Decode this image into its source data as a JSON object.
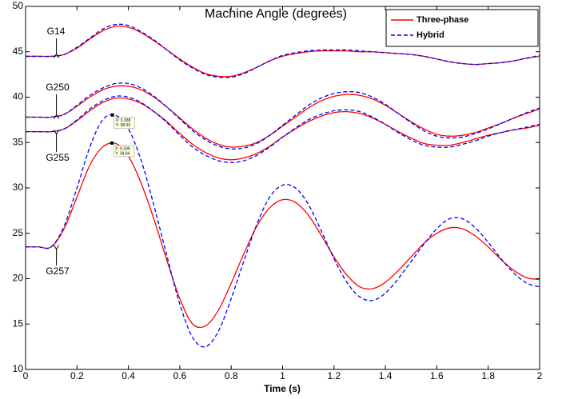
{
  "chart_data": {
    "type": "line",
    "title": "Machine Angle (degrees)",
    "x_label": "Time (s)",
    "x": [
      0,
      0.05,
      0.1,
      0.15,
      0.2,
      0.25,
      0.3,
      0.35,
      0.4,
      0.45,
      0.5,
      0.55,
      0.6,
      0.65,
      0.7,
      0.75,
      0.8,
      0.85,
      0.9,
      0.95,
      1,
      1.05,
      1.1,
      1.15,
      1.2,
      1.25,
      1.3,
      1.35,
      1.4,
      1.45,
      1.5,
      1.55,
      1.6,
      1.65,
      1.7,
      1.75,
      1.8,
      1.85,
      1.9,
      1.95,
      2
    ],
    "xlim": [
      0,
      2
    ],
    "ylim": [
      10,
      50
    ],
    "xticks": [
      0,
      0.2,
      0.4,
      0.6,
      0.8,
      1,
      1.2,
      1.4,
      1.6,
      1.8,
      2
    ],
    "yticks": [
      10,
      15,
      20,
      25,
      30,
      35,
      40,
      45,
      50
    ],
    "legend_position": "upper right",
    "legend": [
      {
        "name": "Three-phase",
        "color": "#ff0000",
        "dash": "solid"
      },
      {
        "name": "Hybrid",
        "color": "#0000ff",
        "dash": "dashed"
      }
    ],
    "series": [
      {
        "label": "G14",
        "curves": [
          [
            44.5,
            44.5,
            44.5,
            44.7,
            45.4,
            46.4,
            47.3,
            47.8,
            47.7,
            47.1,
            46.2,
            45.2,
            44.2,
            43.3,
            42.6,
            42.3,
            42.3,
            42.7,
            43.3,
            44.0,
            44.5,
            44.8,
            45.0,
            45.1,
            45.1,
            45.1,
            45.0,
            45.0,
            44.9,
            44.8,
            44.7,
            44.5,
            44.2,
            43.9,
            43.7,
            43.6,
            43.7,
            43.8,
            44.0,
            44.3,
            44.5
          ],
          [
            44.5,
            44.5,
            44.5,
            44.7,
            45.5,
            46.5,
            47.5,
            48.0,
            47.9,
            47.2,
            46.3,
            45.2,
            44.1,
            43.2,
            42.5,
            42.2,
            42.2,
            42.6,
            43.3,
            44.0,
            44.6,
            44.9,
            45.1,
            45.2,
            45.2,
            45.2,
            45.1,
            45.0,
            44.9,
            44.8,
            44.7,
            44.5,
            44.2,
            43.9,
            43.7,
            43.6,
            43.7,
            43.8,
            44.0,
            44.3,
            44.6
          ]
        ]
      },
      {
        "label": "G250",
        "curves": [
          [
            37.8,
            37.8,
            37.8,
            38.1,
            39.0,
            40.0,
            40.8,
            41.2,
            41.2,
            40.8,
            40.0,
            38.9,
            37.7,
            36.5,
            35.5,
            34.8,
            34.5,
            34.6,
            35.0,
            35.8,
            36.8,
            37.8,
            38.8,
            39.6,
            40.1,
            40.3,
            40.2,
            39.8,
            39.1,
            38.2,
            37.3,
            36.5,
            35.9,
            35.7,
            35.8,
            36.1,
            36.6,
            37.1,
            37.7,
            38.2,
            38.7
          ],
          [
            37.8,
            37.8,
            37.8,
            38.1,
            39.1,
            40.2,
            41.0,
            41.5,
            41.5,
            41.0,
            40.1,
            38.9,
            37.6,
            36.3,
            35.3,
            34.6,
            34.3,
            34.4,
            34.9,
            35.8,
            36.9,
            38.0,
            39.1,
            39.9,
            40.4,
            40.6,
            40.5,
            40.0,
            39.2,
            38.2,
            37.2,
            36.3,
            35.7,
            35.5,
            35.6,
            36.0,
            36.5,
            37.1,
            37.7,
            38.3,
            38.8
          ]
        ]
      },
      {
        "label": "G255",
        "curves": [
          [
            36.2,
            36.2,
            36.2,
            36.5,
            37.4,
            38.5,
            39.4,
            39.9,
            39.8,
            39.3,
            38.4,
            37.3,
            36.0,
            34.8,
            33.9,
            33.3,
            33.1,
            33.3,
            33.8,
            34.6,
            35.6,
            36.5,
            37.3,
            37.9,
            38.3,
            38.4,
            38.2,
            37.7,
            37.0,
            36.2,
            35.5,
            34.9,
            34.7,
            34.7,
            35.0,
            35.4,
            35.8,
            36.1,
            36.4,
            36.6,
            36.9
          ],
          [
            36.2,
            36.2,
            36.2,
            36.5,
            37.5,
            38.7,
            39.6,
            40.1,
            40.0,
            39.4,
            38.4,
            37.2,
            35.8,
            34.5,
            33.6,
            33.0,
            32.8,
            33.0,
            33.6,
            34.5,
            35.6,
            36.6,
            37.5,
            38.1,
            38.5,
            38.6,
            38.4,
            37.8,
            37.0,
            36.1,
            35.3,
            34.7,
            34.5,
            34.5,
            34.8,
            35.2,
            35.7,
            36.1,
            36.4,
            36.7,
            37.0
          ]
        ]
      },
      {
        "label": "G257",
        "curves": [
          [
            23.5,
            23.5,
            23.5,
            25.5,
            29.0,
            32.5,
            34.5,
            34.9,
            33.5,
            30.5,
            26.5,
            22.0,
            17.8,
            15.0,
            14.8,
            16.5,
            19.5,
            22.8,
            25.8,
            27.8,
            28.7,
            28.4,
            27.0,
            24.8,
            22.4,
            20.4,
            19.1,
            18.9,
            19.6,
            20.9,
            22.4,
            23.9,
            25.0,
            25.6,
            25.5,
            24.7,
            23.5,
            22.1,
            20.9,
            20.1,
            19.9
          ],
          [
            23.5,
            23.5,
            23.5,
            25.8,
            30.0,
            34.5,
            37.5,
            38.0,
            36.5,
            33.0,
            28.0,
            22.5,
            17.2,
            13.5,
            12.5,
            14.2,
            17.8,
            22.0,
            26.0,
            29.0,
            30.3,
            30.0,
            28.2,
            25.3,
            22.2,
            19.6,
            18.0,
            17.6,
            18.4,
            20.0,
            21.9,
            23.8,
            25.5,
            26.6,
            26.6,
            25.6,
            24.0,
            22.2,
            20.6,
            19.5,
            19.1
          ]
        ]
      }
    ],
    "datatips": [
      {
        "x": 0.338,
        "y": 38.03,
        "x_label": "X: 0.338",
        "y_label": "Y: 38.03"
      },
      {
        "x": 0.336,
        "y": 34.94,
        "x_label": "X: 0.336",
        "y_label": "Y: 34.94"
      }
    ]
  }
}
